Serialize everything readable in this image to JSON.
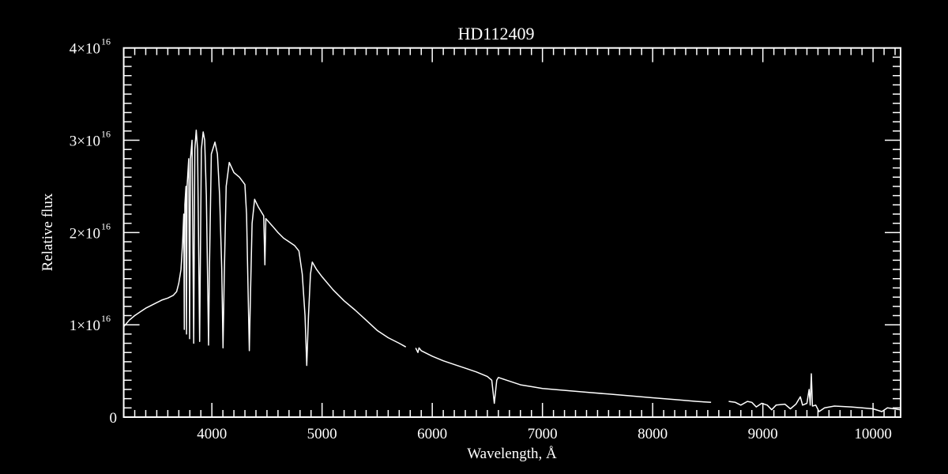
{
  "chart_data": {
    "type": "line",
    "title": "HD112409",
    "xlabel": "Wavelength, Å",
    "ylabel": "Relative flux",
    "xlim": [
      3200,
      10250
    ],
    "ylim": [
      0,
      4e+16
    ],
    "y_scale_unit": 1e+16,
    "x_ticks": [
      4000,
      5000,
      6000,
      7000,
      8000,
      9000,
      10000
    ],
    "x_tick_labels": [
      "4000",
      "5000",
      "6000",
      "7000",
      "8000",
      "9000",
      "10000"
    ],
    "x_minor_step": 100,
    "y_ticks": [
      0,
      1e+16,
      2e+16,
      3e+16,
      4e+16
    ],
    "y_tick_labels": [
      {
        "mantissa": "0",
        "exponent": ""
      },
      {
        "mantissa": "1×10",
        "exponent": "16"
      },
      {
        "mantissa": "2×10",
        "exponent": "16"
      },
      {
        "mantissa": "3×10",
        "exponent": "16"
      },
      {
        "mantissa": "4×10",
        "exponent": "16"
      }
    ],
    "y_minor_step": 1000000000000000.0,
    "grid": false,
    "colors": {
      "background": "#000000",
      "foreground": "#ffffff"
    },
    "series": [
      {
        "flux_unit": "1e16",
        "segments": [
          [
            [
              3200,
              0.98
            ],
            [
              3250,
              1.05
            ],
            [
              3300,
              1.1
            ],
            [
              3350,
              1.14
            ],
            [
              3400,
              1.18
            ],
            [
              3450,
              1.21
            ],
            [
              3500,
              1.24
            ],
            [
              3550,
              1.27
            ],
            [
              3600,
              1.29
            ],
            [
              3650,
              1.32
            ],
            [
              3680,
              1.36
            ],
            [
              3700,
              1.45
            ],
            [
              3720,
              1.6
            ],
            [
              3735,
              1.9
            ],
            [
              3745,
              2.2
            ],
            [
              3750,
              0.95
            ],
            [
              3755,
              2.3
            ],
            [
              3765,
              2.5
            ],
            [
              3770,
              0.9
            ],
            [
              3775,
              2.5
            ],
            [
              3790,
              2.8
            ],
            [
              3798,
              0.85
            ],
            [
              3806,
              2.8
            ],
            [
              3820,
              3.0
            ],
            [
              3835,
              0.8
            ],
            [
              3845,
              2.9
            ],
            [
              3858,
              3.11
            ],
            [
              3870,
              2.9
            ],
            [
              3889,
              0.82
            ],
            [
              3905,
              2.9
            ],
            [
              3921,
              3.09
            ],
            [
              3935,
              3.0
            ],
            [
              3950,
              2.4
            ],
            [
              3965,
              1.2
            ],
            [
              3970,
              0.78
            ],
            [
              3978,
              1.6
            ],
            [
              3995,
              2.85
            ],
            [
              4028,
              2.98
            ],
            [
              4050,
              2.85
            ],
            [
              4070,
              2.4
            ],
            [
              4090,
              1.6
            ],
            [
              4101,
              0.75
            ],
            [
              4112,
              1.5
            ],
            [
              4130,
              2.5
            ],
            [
              4158,
              2.76
            ],
            [
              4200,
              2.65
            ],
            [
              4250,
              2.6
            ],
            [
              4300,
              2.52
            ],
            [
              4315,
              2.2
            ],
            [
              4330,
              1.3
            ],
            [
              4340,
              0.72
            ],
            [
              4350,
              1.3
            ],
            [
              4365,
              2.1
            ],
            [
              4388,
              2.36
            ],
            [
              4420,
              2.28
            ],
            [
              4470,
              2.18
            ],
            [
              4481,
              1.65
            ],
            [
              4490,
              2.15
            ],
            [
              4550,
              2.07
            ],
            [
              4600,
              2.0
            ],
            [
              4650,
              1.94
            ],
            [
              4700,
              1.9
            ],
            [
              4750,
              1.86
            ],
            [
              4790,
              1.8
            ],
            [
              4820,
              1.55
            ],
            [
              4845,
              1.1
            ],
            [
              4861,
              0.56
            ],
            [
              4877,
              1.1
            ],
            [
              4895,
              1.55
            ],
            [
              4911,
              1.68
            ],
            [
              4950,
              1.6
            ],
            [
              5000,
              1.52
            ],
            [
              5100,
              1.38
            ],
            [
              5200,
              1.26
            ],
            [
              5300,
              1.16
            ],
            [
              5400,
              1.05
            ],
            [
              5500,
              0.94
            ],
            [
              5600,
              0.86
            ],
            [
              5700,
              0.8
            ],
            [
              5760,
              0.76
            ]
          ],
          [
            [
              5850,
              0.75
            ],
            [
              5870,
              0.7
            ],
            [
              5880,
              0.75
            ],
            [
              5900,
              0.72
            ],
            [
              6000,
              0.66
            ],
            [
              6100,
              0.61
            ],
            [
              6200,
              0.57
            ],
            [
              6300,
              0.53
            ],
            [
              6400,
              0.49
            ],
            [
              6500,
              0.44
            ],
            [
              6540,
              0.4
            ],
            [
              6563,
              0.15
            ],
            [
              6585,
              0.4
            ],
            [
              6600,
              0.43
            ],
            [
              6700,
              0.39
            ],
            [
              6800,
              0.35
            ],
            [
              6900,
              0.33
            ],
            [
              7000,
              0.31
            ],
            [
              7200,
              0.29
            ],
            [
              7400,
              0.27
            ],
            [
              7600,
              0.25
            ],
            [
              7800,
              0.23
            ],
            [
              8000,
              0.21
            ],
            [
              8200,
              0.19
            ],
            [
              8400,
              0.17
            ],
            [
              8530,
              0.16
            ]
          ],
          [
            [
              8690,
              0.17
            ],
            [
              8750,
              0.16
            ],
            [
              8800,
              0.13
            ],
            [
              8860,
              0.17
            ],
            [
              8900,
              0.16
            ],
            [
              8940,
              0.11
            ],
            [
              8990,
              0.15
            ],
            [
              9040,
              0.13
            ],
            [
              9080,
              0.08
            ],
            [
              9120,
              0.13
            ],
            [
              9200,
              0.14
            ],
            [
              9250,
              0.09
            ],
            [
              9300,
              0.14
            ],
            [
              9340,
              0.22
            ],
            [
              9360,
              0.13
            ],
            [
              9400,
              0.15
            ],
            [
              9420,
              0.3
            ],
            [
              9430,
              0.13
            ],
            [
              9440,
              0.47
            ],
            [
              9450,
              0.12
            ],
            [
              9480,
              0.13
            ],
            [
              9510,
              0.06
            ],
            [
              9560,
              0.1
            ],
            [
              9650,
              0.12
            ],
            [
              9800,
              0.11
            ],
            [
              9900,
              0.1
            ],
            [
              10000,
              0.09
            ],
            [
              10080,
              0.06
            ],
            [
              10130,
              0.1
            ],
            [
              10250,
              0.08
            ]
          ]
        ]
      }
    ]
  }
}
